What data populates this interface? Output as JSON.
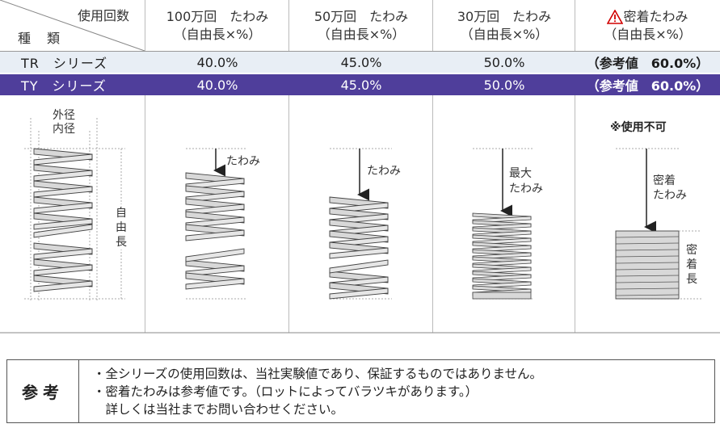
{
  "header": {
    "corner_top": "使用回数",
    "corner_bottom": "種　類",
    "columns": [
      {
        "line1": "100万回　たわみ",
        "line2": "（自由長×%）"
      },
      {
        "line1": "50万回　たわみ",
        "line2": "（自由長×%）"
      },
      {
        "line1": "30万回　たわみ",
        "line2": "（自由長×%）"
      },
      {
        "line1": "密着たわみ",
        "line2": "（自由長×%）"
      }
    ]
  },
  "rows": [
    {
      "name": "TR　シリーズ",
      "values": [
        "40.0%",
        "45.0%",
        "50.0%",
        "（参考値　60.0%）"
      ]
    },
    {
      "name": "TY　シリーズ",
      "values": [
        "40.0%",
        "45.0%",
        "50.0%",
        "（参考値　60.0%）"
      ]
    }
  ],
  "diagram": {
    "outer_dia": "外径",
    "inner_dia": "内径",
    "free_length": "自由長",
    "deflection": "たわみ",
    "max_deflection": "最大たわみ",
    "not_usable": "※使用不可",
    "solid_deflection": "密着たわみ",
    "solid_length": "密着長"
  },
  "note": {
    "label": "参考",
    "lines": [
      "・全シリーズの使用回数は、当社実験値であり、保証するものではありません。",
      "・密着たわみは参考値です。（ロットによってバラツキがあります。）",
      "　詳しくは当社までお問い合わせください。"
    ]
  },
  "colors": {
    "ty_row": "#4f3e9b",
    "tr_row": "#e8eef5",
    "warning": "#d10000",
    "spring_fill": "#d8d8d8"
  }
}
